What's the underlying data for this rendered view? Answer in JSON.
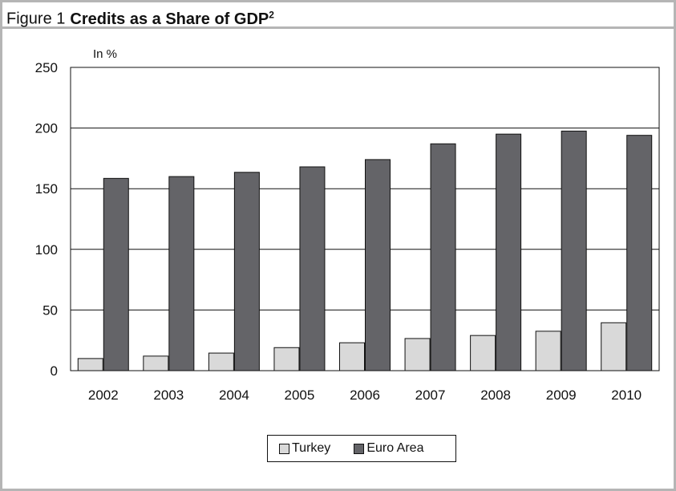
{
  "figure": {
    "number": "Figure 1",
    "title": "Credits as a Share of GDP",
    "title_superscript": "2",
    "unit_label": "In %"
  },
  "colors": {
    "turkey": "#d9d9d9",
    "euro_area": "#646468",
    "border": "#b5b5b5",
    "gridline": "#111111"
  },
  "chart_data": {
    "type": "bar",
    "title": "Credits as a Share of GDP",
    "xlabel": "",
    "ylabel": "In %",
    "ylim": [
      0,
      250
    ],
    "yticks": [
      0,
      50,
      100,
      150,
      200,
      250
    ],
    "grid": true,
    "legend_position": "bottom-center",
    "categories": [
      "2002",
      "2003",
      "2004",
      "2005",
      "2006",
      "2007",
      "2008",
      "2009",
      "2010"
    ],
    "series": [
      {
        "name": "Turkey",
        "color": "#d9d9d9",
        "values": [
          10,
          12,
          14.5,
          19,
          23,
          26.5,
          29,
          32.5,
          39.5
        ]
      },
      {
        "name": "Euro Area",
        "color": "#646468",
        "values": [
          158.5,
          160,
          163.5,
          168,
          174,
          187,
          195,
          197.5,
          194
        ]
      }
    ]
  },
  "legend": [
    {
      "label": "Turkey",
      "color": "#d9d9d9"
    },
    {
      "label": "Euro Area",
      "color": "#646468"
    }
  ]
}
